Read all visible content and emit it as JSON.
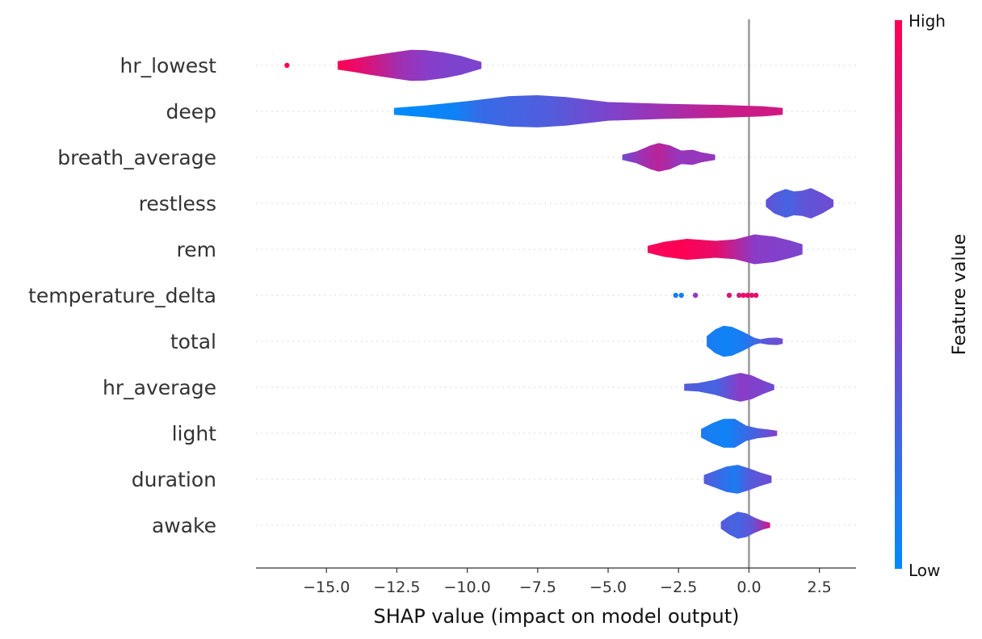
{
  "chart_data": {
    "type": "violin",
    "xlabel": "SHAP value (impact on model output)",
    "xlim": [
      -17.5,
      3.8
    ],
    "xticks": [
      -15.0,
      -12.5,
      -10.0,
      -7.5,
      -5.0,
      -2.5,
      0.0,
      2.5
    ],
    "xtick_labels": [
      "−15.0",
      "−12.5",
      "−10.0",
      "−7.5",
      "−5.0",
      "−2.5",
      "0.0",
      "2.5"
    ],
    "colorbar": {
      "title": "Feature value",
      "high_label": "High",
      "low_label": "Low",
      "high_color": "#ff0052",
      "low_color": "#008bfb"
    },
    "features": [
      {
        "name": "hr_lowest",
        "outliers": [
          {
            "x": -16.4,
            "c": 1.0
          }
        ],
        "profile": [
          [
            -14.6,
            0.25
          ],
          [
            -14,
            0.4
          ],
          [
            -13.5,
            0.55
          ],
          [
            -12.5,
            0.8
          ],
          [
            -12,
            0.92
          ],
          [
            -11.5,
            0.9
          ],
          [
            -10.8,
            0.75
          ],
          [
            -10.2,
            0.55
          ],
          [
            -9.8,
            0.35
          ],
          [
            -9.5,
            0.2
          ]
        ],
        "colors": [
          [
            -14.6,
            1.0
          ],
          [
            -13.6,
            0.85
          ],
          [
            -12.4,
            0.6
          ],
          [
            -11.5,
            0.5
          ],
          [
            -10.5,
            0.45
          ],
          [
            -9.5,
            0.45
          ]
        ]
      },
      {
        "name": "deep",
        "profile": [
          [
            -12.6,
            0.2
          ],
          [
            -11.5,
            0.35
          ],
          [
            -10,
            0.6
          ],
          [
            -8.5,
            0.9
          ],
          [
            -7.5,
            0.95
          ],
          [
            -6.5,
            0.85
          ],
          [
            -5,
            0.55
          ],
          [
            -3,
            0.45
          ],
          [
            -1,
            0.38
          ],
          [
            0.5,
            0.3
          ],
          [
            1.2,
            0.2
          ]
        ],
        "colors": [
          [
            -12.6,
            0.0
          ],
          [
            -10.5,
            0.05
          ],
          [
            -9.5,
            0.2
          ],
          [
            -7,
            0.3
          ],
          [
            -5,
            0.45
          ],
          [
            -3,
            0.6
          ],
          [
            -1,
            0.75
          ],
          [
            1.2,
            0.8
          ]
        ]
      },
      {
        "name": "breath_average",
        "profile": [
          [
            -4.5,
            0.15
          ],
          [
            -4,
            0.35
          ],
          [
            -3.5,
            0.7
          ],
          [
            -3.2,
            0.85
          ],
          [
            -2.8,
            0.7
          ],
          [
            -2.4,
            0.4
          ],
          [
            -2,
            0.45
          ],
          [
            -1.7,
            0.3
          ],
          [
            -1.2,
            0.15
          ]
        ],
        "colors": [
          [
            -4.5,
            0.4
          ],
          [
            -3.8,
            0.6
          ],
          [
            -3.2,
            0.7
          ],
          [
            -2.5,
            0.55
          ],
          [
            -1.2,
            0.55
          ]
        ]
      },
      {
        "name": "restless",
        "profile": [
          [
            0.6,
            0.2
          ],
          [
            0.9,
            0.6
          ],
          [
            1.3,
            0.85
          ],
          [
            1.6,
            0.7
          ],
          [
            1.9,
            0.75
          ],
          [
            2.2,
            0.9
          ],
          [
            2.6,
            0.6
          ],
          [
            3.0,
            0.2
          ]
        ],
        "colors": [
          [
            0.6,
            0.35
          ],
          [
            1.4,
            0.25
          ],
          [
            2.0,
            0.35
          ],
          [
            3.0,
            0.4
          ]
        ]
      },
      {
        "name": "rem",
        "profile": [
          [
            -3.6,
            0.2
          ],
          [
            -3,
            0.45
          ],
          [
            -2.2,
            0.62
          ],
          [
            -1.2,
            0.5
          ],
          [
            -0.5,
            0.58
          ],
          [
            0.2,
            0.88
          ],
          [
            0.9,
            0.75
          ],
          [
            1.5,
            0.5
          ],
          [
            1.9,
            0.3
          ]
        ],
        "colors": [
          [
            -3.6,
            0.95
          ],
          [
            -2.5,
            1.0
          ],
          [
            -1.2,
            0.9
          ],
          [
            -0.5,
            0.7
          ],
          [
            0.2,
            0.5
          ],
          [
            1.9,
            0.45
          ]
        ]
      },
      {
        "name": "temperature_delta",
        "points": [
          {
            "x": -2.6,
            "c": 0.1
          },
          {
            "x": -2.4,
            "c": 0.05
          },
          {
            "x": -1.9,
            "c": 0.5
          },
          {
            "x": -0.7,
            "c": 0.85
          },
          {
            "x": -0.35,
            "c": 0.8
          },
          {
            "x": -0.2,
            "c": 0.9
          },
          {
            "x": -0.05,
            "c": 0.95
          },
          {
            "x": 0.1,
            "c": 0.85
          },
          {
            "x": 0.25,
            "c": 0.9
          }
        ]
      },
      {
        "name": "total",
        "profile": [
          [
            -1.5,
            0.3
          ],
          [
            -1.2,
            0.7
          ],
          [
            -0.9,
            0.92
          ],
          [
            -0.6,
            0.85
          ],
          [
            -0.2,
            0.55
          ],
          [
            0.2,
            0.2
          ],
          [
            0.4,
            0.12
          ],
          [
            0.7,
            0.2
          ],
          [
            1.0,
            0.22
          ],
          [
            1.2,
            0.15
          ]
        ],
        "colors": [
          [
            -1.5,
            0.1
          ],
          [
            -0.8,
            0.05
          ],
          [
            -0.2,
            0.1
          ],
          [
            0.3,
            0.25
          ],
          [
            0.7,
            0.35
          ],
          [
            1.2,
            0.4
          ]
        ]
      },
      {
        "name": "hr_average",
        "profile": [
          [
            -2.3,
            0.2
          ],
          [
            -1.8,
            0.25
          ],
          [
            -1.2,
            0.45
          ],
          [
            -0.7,
            0.7
          ],
          [
            -0.3,
            0.85
          ],
          [
            0.1,
            0.7
          ],
          [
            0.5,
            0.4
          ],
          [
            0.9,
            0.15
          ]
        ],
        "colors": [
          [
            -2.3,
            0.3
          ],
          [
            -1.2,
            0.25
          ],
          [
            -0.3,
            0.5
          ],
          [
            0.5,
            0.45
          ],
          [
            0.9,
            0.4
          ]
        ]
      },
      {
        "name": "light",
        "profile": [
          [
            -1.7,
            0.25
          ],
          [
            -1.3,
            0.6
          ],
          [
            -0.9,
            0.85
          ],
          [
            -0.5,
            0.85
          ],
          [
            -0.1,
            0.45
          ],
          [
            0.3,
            0.3
          ],
          [
            0.7,
            0.22
          ],
          [
            1.0,
            0.15
          ]
        ],
        "colors": [
          [
            -1.7,
            0.1
          ],
          [
            -0.8,
            0.05
          ],
          [
            -0.1,
            0.2
          ],
          [
            0.6,
            0.35
          ],
          [
            1.0,
            0.5
          ]
        ]
      },
      {
        "name": "duration",
        "profile": [
          [
            -1.6,
            0.25
          ],
          [
            -1.2,
            0.5
          ],
          [
            -0.8,
            0.75
          ],
          [
            -0.4,
            0.85
          ],
          [
            0.0,
            0.65
          ],
          [
            0.4,
            0.4
          ],
          [
            0.8,
            0.2
          ]
        ],
        "colors": [
          [
            -1.6,
            0.3
          ],
          [
            -0.5,
            0.1
          ],
          [
            0.0,
            0.3
          ],
          [
            0.8,
            0.4
          ]
        ]
      },
      {
        "name": "awake",
        "profile": [
          [
            -1.0,
            0.2
          ],
          [
            -0.7,
            0.55
          ],
          [
            -0.4,
            0.8
          ],
          [
            -0.1,
            0.7
          ],
          [
            0.2,
            0.45
          ],
          [
            0.5,
            0.25
          ],
          [
            0.75,
            0.15
          ]
        ],
        "colors": [
          [
            -1.0,
            0.3
          ],
          [
            -0.4,
            0.25
          ],
          [
            0.1,
            0.35
          ],
          [
            0.5,
            0.6
          ],
          [
            0.75,
            0.8
          ]
        ]
      }
    ]
  }
}
